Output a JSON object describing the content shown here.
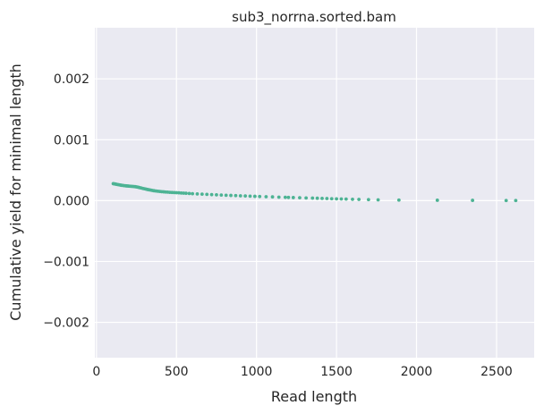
{
  "chart_data": {
    "type": "scatter",
    "title": "sub3_norrna.sorted.bam",
    "xlabel": "Read length",
    "ylabel": "Cumulative yield for minimal length",
    "xlim": [
      -10,
      2735
    ],
    "ylim": [
      -0.00258,
      0.00284
    ],
    "x_ticks": [
      0,
      500,
      1000,
      1500,
      2000,
      2500
    ],
    "x_tick_labels": [
      "0",
      "500",
      "1000",
      "1500",
      "2000",
      "2500"
    ],
    "y_ticks": [
      -0.002,
      -0.001,
      0.0,
      0.001,
      0.002
    ],
    "y_tick_labels": [
      "−0.002",
      "−0.001",
      "0.000",
      "0.001",
      "0.002"
    ],
    "grid": true,
    "background": "#eaeaf2",
    "grid_color": "#ffffff",
    "marker_color": "#4db394",
    "series": [
      {
        "x": [
          105,
          112,
          118,
          125,
          132,
          140,
          148,
          156,
          165,
          173,
          182,
          190,
          199,
          208,
          217,
          226,
          235,
          244,
          253,
          262,
          271,
          280,
          290,
          300,
          310,
          320,
          330,
          340,
          350,
          360,
          372,
          384,
          396,
          408,
          420,
          432,
          445,
          458,
          472,
          486,
          500,
          515,
          530,
          545,
          560,
          580,
          600,
          630,
          660,
          690,
          720,
          750,
          780,
          810,
          840,
          870,
          900,
          930,
          960,
          990,
          1020,
          1060,
          1100,
          1140,
          1180,
          1200,
          1230,
          1270,
          1310,
          1350,
          1380,
          1410,
          1440,
          1470,
          1500,
          1530,
          1560,
          1600,
          1640,
          1700,
          1760,
          1890,
          2130,
          2350,
          2560,
          2620
        ],
        "y": [
          0.000278,
          0.000275,
          0.000272,
          0.000268,
          0.000264,
          0.00026,
          0.000256,
          0.000252,
          0.000249,
          0.000246,
          0.000243,
          0.000241,
          0.000239,
          0.000237,
          0.000235,
          0.000233,
          0.000231,
          0.000228,
          0.000224,
          0.000219,
          0.000213,
          0.000207,
          0.0002,
          0.000194,
          0.000188,
          0.000182,
          0.000177,
          0.000172,
          0.000167,
          0.000162,
          0.000158,
          0.000154,
          0.00015,
          0.000147,
          0.000144,
          0.000141,
          0.000139,
          0.000136,
          0.000134,
          0.000132,
          0.00013,
          0.000128,
          0.000125,
          0.000123,
          0.00012,
          0.000117,
          0.000114,
          0.00011,
          0.000106,
          0.000102,
          9.8e-05,
          9.5e-05,
          9.1e-05,
          8.8e-05,
          8.5e-05,
          8.2e-05,
          7.9e-05,
          7.6e-05,
          7.3e-05,
          7e-05,
          6.7e-05,
          6.4e-05,
          6.1e-05,
          5.7e-05,
          5.4e-05,
          5.2e-05,
          5e-05,
          4.7e-05,
          4.4e-05,
          4.1e-05,
          3.9e-05,
          3.6e-05,
          3.4e-05,
          3.1e-05,
          2.9e-05,
          2.7e-05,
          2.5e-05,
          2.2e-05,
          2e-05,
          1.6e-05,
          1.3e-05,
          9e-06,
          6e-06,
          4e-06,
          2e-06,
          1e-06
        ]
      }
    ]
  }
}
